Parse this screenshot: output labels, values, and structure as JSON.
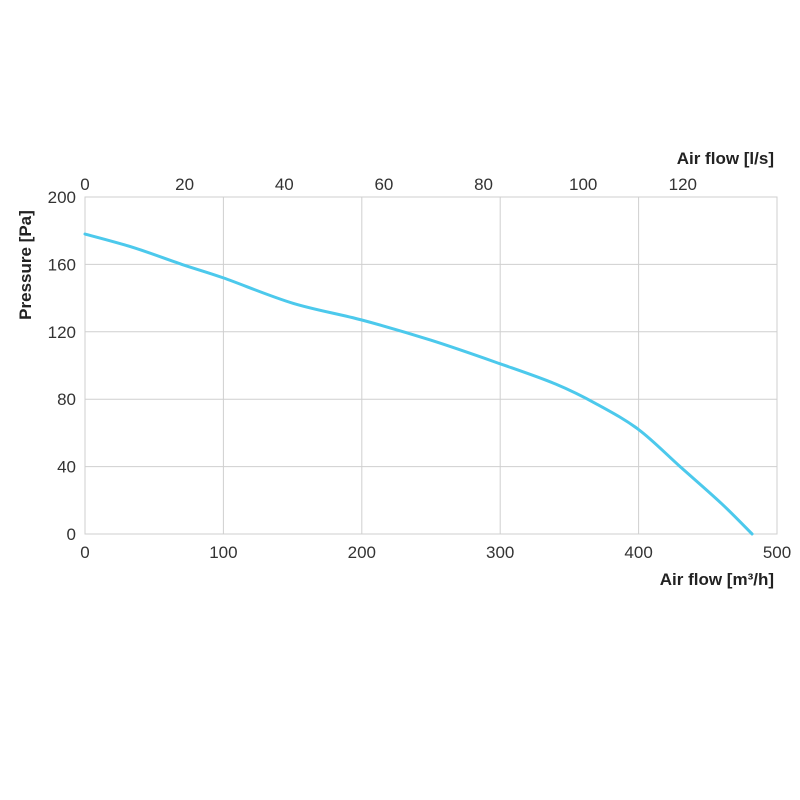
{
  "chart_data": {
    "type": "line",
    "xlabel": "Air flow [m³/h]",
    "x2label": "Air flow [l/s]",
    "ylabel": "Pressure [Pa]",
    "xlim": [
      0,
      500
    ],
    "x2lim": [
      0,
      138.9
    ],
    "ylim": [
      0,
      200
    ],
    "x_ticks": [
      0,
      100,
      200,
      300,
      400,
      500
    ],
    "x2_ticks": [
      0,
      20,
      40,
      60,
      80,
      100,
      120
    ],
    "y_ticks": [
      0,
      40,
      80,
      120,
      160,
      200
    ],
    "grid": true,
    "line_color": "#4cc9ec",
    "series": [
      {
        "x": [
          0,
          35,
          70,
          100,
          150,
          200,
          250,
          300,
          340,
          370,
          400,
          430,
          460,
          482
        ],
        "y": [
          178,
          170,
          160,
          152,
          137,
          127,
          115,
          101,
          89,
          77,
          62,
          40,
          18,
          0
        ]
      }
    ]
  }
}
